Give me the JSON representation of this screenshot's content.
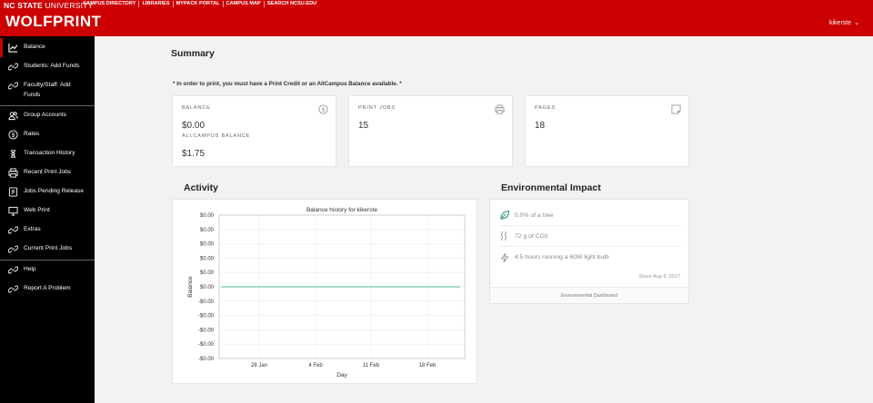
{
  "topbar": {
    "university_bold": "NC STATE",
    "university_thin": " UNIVERSITY",
    "links": [
      "CAMPUS DIRECTORY",
      "LIBRARIES",
      "MYPACK PORTAL",
      "CAMPUS MAP",
      "SEARCH NCSU.EDU"
    ],
    "brand": "WOLFPRINT",
    "user": "kikerste",
    "colors": {
      "accent": "#cc0000"
    }
  },
  "sidebar": {
    "items": [
      {
        "label": "Balance",
        "icon": "chart-line-icon"
      },
      {
        "label": "Students: Add Funds",
        "icon": "link-icon"
      },
      {
        "label": "Faculty/Staff: Add Funds",
        "icon": "link-icon"
      },
      {
        "label": "Group Accounts",
        "icon": "users-icon"
      },
      {
        "label": "Rates",
        "icon": "dollar-icon"
      },
      {
        "label": "Transaction History",
        "icon": "history-icon"
      },
      {
        "label": "Recent Print Jobs",
        "icon": "printer-icon"
      },
      {
        "label": "Jobs Pending Release",
        "icon": "pending-icon"
      },
      {
        "label": "Web Print",
        "icon": "monitor-icon"
      },
      {
        "label": "Extras",
        "icon": "link-icon"
      },
      {
        "label": "Current Print Jobs",
        "icon": "link-icon"
      },
      {
        "label": "Help",
        "icon": "link-icon"
      },
      {
        "label": "Report A Problem",
        "icon": "link-icon"
      }
    ]
  },
  "summary": {
    "title": "Summary",
    "notice": "* In order to print, you must have a Print Credit or an AllCampus Balance available. *",
    "balance": {
      "label": "BALANCE",
      "value": "$0.00",
      "allcampus_label": "ALLCAMPUS BALANCE",
      "allcampus_value": "$1.75"
    },
    "print_jobs": {
      "label": "PRINT JOBS",
      "value": "15"
    },
    "pages": {
      "label": "PAGES",
      "value": "18"
    }
  },
  "activity": {
    "title": "Activity"
  },
  "chart_data": {
    "type": "line",
    "title": "Balance history for kikerste",
    "xlabel": "Day",
    "ylabel": "Balance",
    "x_ticks": [
      "28 Jan",
      "4 Feb",
      "11 Feb",
      "18 Feb"
    ],
    "y_ticks": [
      "$0.00",
      "$0.00",
      "$0.00",
      "$0.00",
      "$0.00",
      "$0.00",
      "-$0.00",
      "-$0.00",
      "-$0.00",
      "-$0.00",
      "-$0.00"
    ],
    "ylim": [
      -0.005,
      0.005
    ],
    "grid": true,
    "series": [
      {
        "values": [
          0,
          0
        ],
        "color": "#4db89f"
      }
    ]
  },
  "environment": {
    "title": "Environmental Impact",
    "rows": [
      {
        "text": "0.0% of a tree",
        "icon": "leaf-icon"
      },
      {
        "text": "72 g of CO2",
        "icon": "smoke-icon"
      },
      {
        "text": "4.5 hours running a 60W light bulb",
        "icon": "bolt-icon"
      }
    ],
    "since": "Since Aug 9, 2017",
    "footer": "Environmental Dashboard"
  }
}
